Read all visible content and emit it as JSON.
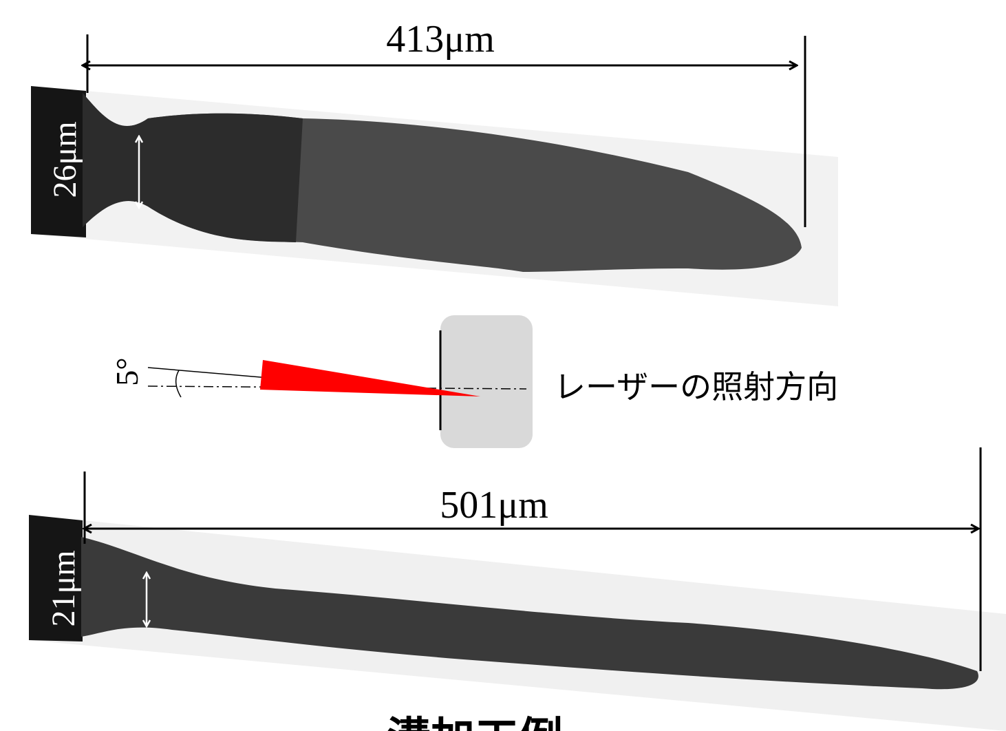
{
  "top": {
    "length": "413μm",
    "width": "26μm"
  },
  "laser": {
    "angle": "5°",
    "label": "レーザーの照射方向"
  },
  "bottom": {
    "length": "501μm",
    "width": "21μm"
  },
  "caption": "溝加工例"
}
